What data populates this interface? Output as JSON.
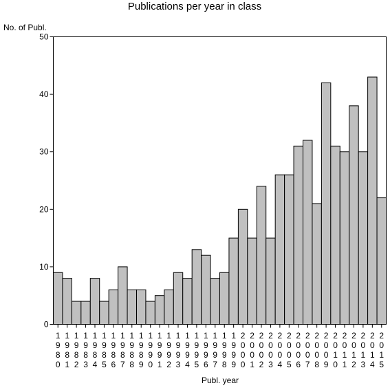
{
  "chart_data": {
    "type": "bar",
    "title": "Publications per year in class",
    "ylabel": "No. of Publ.",
    "xlabel": "Publ. year",
    "ylim": [
      0,
      50
    ],
    "yticks": [
      0,
      10,
      20,
      30,
      40,
      50
    ],
    "grid": false,
    "bar_color": "#c0c0c0",
    "categories": [
      "1980",
      "1981",
      "1982",
      "1983",
      "1984",
      "1985",
      "1986",
      "1987",
      "1988",
      "1989",
      "1990",
      "1991",
      "1992",
      "1993",
      "1994",
      "1995",
      "1996",
      "1997",
      "1998",
      "1999",
      "2000",
      "2001",
      "2002",
      "2003",
      "2004",
      "2005",
      "2006",
      "2007",
      "2008",
      "2009",
      "2010",
      "2011",
      "2012",
      "2013",
      "2014",
      "2015"
    ],
    "values": [
      9,
      8,
      4,
      4,
      8,
      4,
      6,
      10,
      6,
      6,
      4,
      5,
      6,
      9,
      8,
      13,
      12,
      8,
      9,
      15,
      20,
      15,
      24,
      15,
      26,
      26,
      31,
      32,
      21,
      42,
      31,
      30,
      38,
      30,
      43,
      22
    ]
  }
}
